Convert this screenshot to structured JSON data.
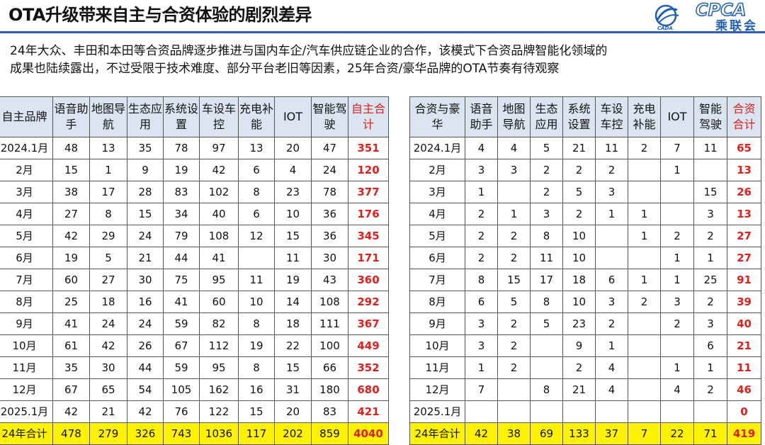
{
  "title": "OTA升级带来自主与合资体验的剧烈差异",
  "logo": {
    "cn": "乘联会",
    "en": "CPCA",
    "small": "CADA",
    "brand_color": "#1f5fb5"
  },
  "description": [
    "24年大众、丰田和本田等合资品牌逐步推进与国内车企/汽车供应链企业的合作，该模式下合资品牌智能化领域的",
    "成果也陆续露出，不过受限于技术难度、部分平台老旧等因素，25年合资/豪华品牌的OTA节奏有待观察"
  ],
  "colors": {
    "header_bg": "#dbe5f1",
    "total_red": "#e0201d",
    "sum_row_bg": "#fff200",
    "rule_blue": "#2f5fb3"
  },
  "table1": {
    "headers": [
      "自主品牌",
      "语音助手",
      "地图导航",
      "生态应用",
      "系统设置",
      "车设车控",
      "充电补能",
      "IOT",
      "智能驾驶",
      "自主合计"
    ],
    "rows": [
      [
        "2024.1月",
        "48",
        "13",
        "35",
        "78",
        "97",
        "13",
        "20",
        "47",
        "351"
      ],
      [
        "2月",
        "15",
        "1",
        "9",
        "19",
        "42",
        "6",
        "4",
        "24",
        "120"
      ],
      [
        "3月",
        "38",
        "17",
        "28",
        "83",
        "102",
        "8",
        "23",
        "78",
        "377"
      ],
      [
        "4月",
        "27",
        "8",
        "15",
        "34",
        "40",
        "6",
        "10",
        "36",
        "176"
      ],
      [
        "5月",
        "42",
        "29",
        "24",
        "79",
        "108",
        "12",
        "15",
        "36",
        "345"
      ],
      [
        "6月",
        "19",
        "5",
        "21",
        "44",
        "41",
        "",
        "11",
        "30",
        "171"
      ],
      [
        "7月",
        "60",
        "27",
        "30",
        "75",
        "95",
        "11",
        "19",
        "43",
        "360"
      ],
      [
        "8月",
        "25",
        "18",
        "16",
        "41",
        "60",
        "10",
        "14",
        "108",
        "292"
      ],
      [
        "9月",
        "41",
        "24",
        "24",
        "59",
        "82",
        "8",
        "18",
        "111",
        "367"
      ],
      [
        "10月",
        "61",
        "42",
        "26",
        "67",
        "112",
        "19",
        "22",
        "100",
        "449"
      ],
      [
        "11月",
        "35",
        "30",
        "44",
        "59",
        "95",
        "8",
        "15",
        "66",
        "352"
      ],
      [
        "12月",
        "67",
        "65",
        "54",
        "105",
        "162",
        "16",
        "31",
        "180",
        "680"
      ],
      [
        "2025.1月",
        "42",
        "21",
        "42",
        "76",
        "122",
        "15",
        "20",
        "83",
        "421"
      ]
    ],
    "sum_row": [
      "24年合计",
      "478",
      "279",
      "326",
      "743",
      "1036",
      "117",
      "202",
      "859",
      "4040"
    ]
  },
  "table2": {
    "headers": [
      "合资与豪华",
      "语音助手",
      "地图导航",
      "生态应用",
      "系统设置",
      "车设车控",
      "充电补能",
      "IOT",
      "智能驾驶",
      "合资合计"
    ],
    "rows": [
      [
        "2024.1月",
        "4",
        "4",
        "5",
        "21",
        "11",
        "2",
        "7",
        "11",
        "65"
      ],
      [
        "2月",
        "3",
        "3",
        "2",
        "2",
        "2",
        "",
        "1",
        "",
        "13"
      ],
      [
        "3月",
        "1",
        "",
        "2",
        "5",
        "3",
        "",
        "",
        "15",
        "26"
      ],
      [
        "4月",
        "2",
        "1",
        "3",
        "2",
        "1",
        "1",
        "",
        "3",
        "13"
      ],
      [
        "5月",
        "2",
        "2",
        "8",
        "10",
        "",
        "1",
        "2",
        "2",
        "27"
      ],
      [
        "6月",
        "2",
        "2",
        "11",
        "10",
        "",
        "",
        "1",
        "1",
        "27"
      ],
      [
        "7月",
        "8",
        "15",
        "17",
        "18",
        "6",
        "1",
        "1",
        "25",
        "91"
      ],
      [
        "8月",
        "6",
        "5",
        "8",
        "10",
        "3",
        "2",
        "3",
        "2",
        "39"
      ],
      [
        "9月",
        "3",
        "2",
        "5",
        "23",
        "2",
        "",
        "2",
        "3",
        "40"
      ],
      [
        "10月",
        "3",
        "2",
        "",
        "9",
        "1",
        "",
        "",
        "6",
        "21"
      ],
      [
        "11月",
        "1",
        "2",
        "",
        "2",
        "4",
        "",
        "1",
        "1",
        "11"
      ],
      [
        "12月",
        "7",
        "",
        "8",
        "21",
        "4",
        "",
        "4",
        "2",
        "46"
      ],
      [
        "2025.1月",
        "",
        "",
        "",
        "",
        "",
        "",
        "",
        "",
        "0"
      ]
    ],
    "sum_row": [
      "24年合计",
      "42",
      "38",
      "69",
      "133",
      "37",
      "7",
      "22",
      "71",
      "419"
    ]
  }
}
